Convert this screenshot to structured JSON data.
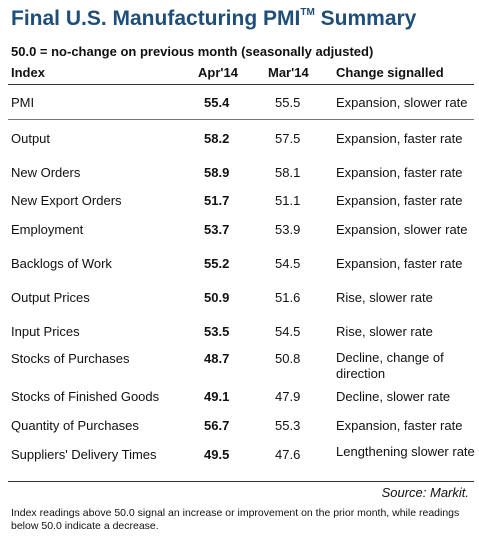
{
  "title": {
    "text": "Final U.S. Manufacturing PMI",
    "trademark": "TM",
    "suffix": " Summary"
  },
  "subtitle": "50.0 = no-change on previous month (seasonally adjusted)",
  "columns": {
    "index": "Index",
    "apr": "Apr'14",
    "mar": "Mar'14",
    "change": "Change signalled"
  },
  "rows": [
    {
      "index": "PMI",
      "apr": "55.4",
      "mar": "55.5",
      "change": "Expansion, slower rate"
    },
    {
      "index": "Output",
      "apr": "58.2",
      "mar": "57.5",
      "change": "Expansion, faster rate"
    },
    {
      "index": "New Orders",
      "apr": "58.9",
      "mar": "58.1",
      "change": "Expansion, faster rate"
    },
    {
      "index": "New Export Orders",
      "apr": "51.7",
      "mar": "51.1",
      "change": "Expansion, faster rate"
    },
    {
      "index": "Employment",
      "apr": "53.7",
      "mar": "53.9",
      "change": "Expansion, slower rate"
    },
    {
      "index": "Backlogs of Work",
      "apr": "55.2",
      "mar": "54.5",
      "change": "Expansion, faster rate"
    },
    {
      "index": "Output Prices",
      "apr": "50.9",
      "mar": "51.6",
      "change": "Rise, slower rate"
    },
    {
      "index": "Input Prices",
      "apr": "53.5",
      "mar": "54.5",
      "change": "Rise, slower rate"
    },
    {
      "index": "Stocks of Purchases",
      "apr": "48.7",
      "mar": "50.8",
      "change": "Decline, change of direction"
    },
    {
      "index": "Stocks of Finished Goods",
      "apr": "49.1",
      "mar": "47.9",
      "change": "Decline, slower rate"
    },
    {
      "index": "Quantity of Purchases",
      "apr": "56.7",
      "mar": "55.3",
      "change": "Expansion, faster rate"
    },
    {
      "index": "Suppliers' Delivery Times",
      "apr": "49.5",
      "mar": "47.6",
      "change": "Lengthening slower rate"
    }
  ],
  "source": "Source: Markit.",
  "footnote": "Index readings above 50.0 signal an increase or improvement on the prior month, while readings below 50.0 indicate a decrease.",
  "colors": {
    "title": "#1f4e79",
    "text": "#111111"
  }
}
